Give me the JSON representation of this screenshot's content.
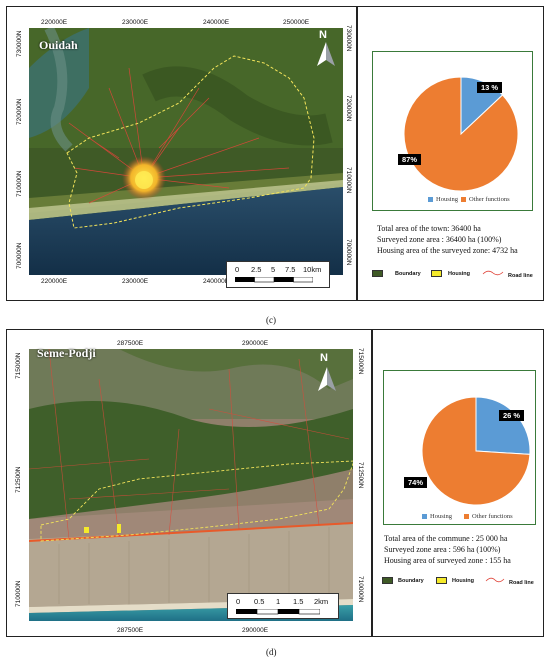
{
  "panels": [
    {
      "caption": "(c)",
      "map_name": "Ouidah",
      "north": "N",
      "x_ticks": [
        "220000E",
        "230000E",
        "240000E",
        "250000E"
      ],
      "y_ticks_left": [
        "730000N",
        "720000N",
        "710000N",
        "700000N"
      ],
      "y_ticks_right": [
        "730000N",
        "720000N",
        "710000N",
        "700000N"
      ],
      "scale_labels": [
        "0",
        "2.5",
        "5",
        "7.5",
        "10km"
      ],
      "pie": {
        "type": "pie",
        "categories": [
          "Housing",
          "Other functions"
        ],
        "values": [
          13,
          87
        ],
        "labels": [
          "13 %",
          "87%"
        ],
        "colors": [
          "#5b9bd5",
          "#ed7d31"
        ]
      },
      "info_lines": [
        "Total area of the town: 36400 ha",
        "Surveyed  zone area : 36400 ha (100%)",
        "Housing area of the surveyed zone: 4732 ha"
      ],
      "legend": {
        "boundary": "Boundary",
        "housing": "Housing",
        "road": "Road line"
      }
    },
    {
      "caption": "(d)",
      "map_name": "Seme-Podji",
      "north": "N",
      "x_ticks": [
        "287500E",
        "290000E"
      ],
      "y_ticks_left": [
        "715000N",
        "712500N",
        "710000N"
      ],
      "y_ticks_right": [
        "715000N",
        "712500N",
        "710000N"
      ],
      "scale_labels": [
        "0",
        "0.5",
        "1",
        "1.5",
        "2km"
      ],
      "pie": {
        "type": "pie",
        "categories": [
          "Housing",
          "Other functions"
        ],
        "values": [
          26,
          74
        ],
        "labels": [
          "26 %",
          "74%"
        ],
        "colors": [
          "#5b9bd5",
          "#ed7d31"
        ]
      },
      "info_lines": [
        "Total area of the commune : 25 000 ha",
        "Surveyed zone area : 596 ha (100%)",
        "Housing area of surveyed  zone : 155 ha"
      ],
      "legend": {
        "boundary": "Boundary",
        "housing": "Housing",
        "road": "Road line"
      }
    }
  ],
  "chart_data": [
    {
      "type": "pie",
      "categories": [
        "Housing",
        "Other functions"
      ],
      "values": [
        13,
        87
      ],
      "labels": [
        "13 %",
        "87%"
      ]
    },
    {
      "type": "pie",
      "categories": [
        "Housing",
        "Other functions"
      ],
      "values": [
        26,
        74
      ],
      "labels": [
        "26 %",
        "74%"
      ]
    }
  ]
}
